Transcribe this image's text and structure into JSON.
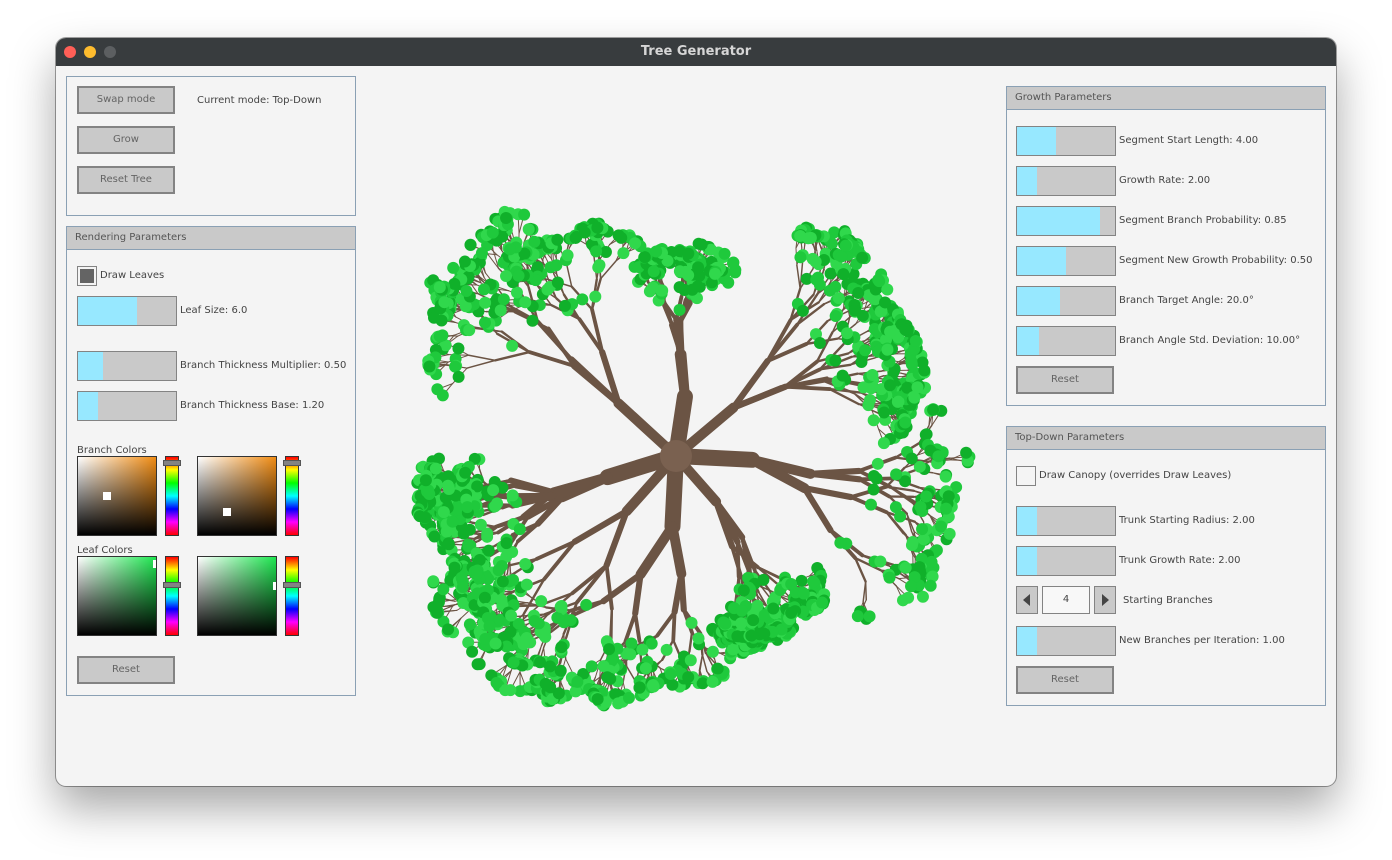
{
  "window": {
    "title": "Tree Generator"
  },
  "mode_panel": {
    "swap_label": "Swap mode",
    "current_mode": "Current mode: Top-Down",
    "grow_label": "Grow",
    "reset_tree_label": "Reset Tree"
  },
  "rendering": {
    "title": "Rendering Parameters",
    "draw_leaves_label": "Draw Leaves",
    "draw_leaves_checked": true,
    "leaf_size": {
      "label": "Leaf Size: 6.0",
      "fill": 0.6
    },
    "branch_mult": {
      "label": "Branch Thickness Multiplier: 0.50",
      "fill": 0.25
    },
    "branch_base": {
      "label": "Branch Thickness Base: 1.20",
      "fill": 0.2
    },
    "branch_colors_label": "Branch Colors",
    "leaf_colors_label": "Leaf Colors",
    "reset_label": "Reset",
    "colors": {
      "branch1": "#f08c14",
      "branch2": "#f08c14",
      "leaf1": "#1ee650",
      "leaf2": "#1ee650"
    }
  },
  "growth": {
    "title": "Growth Parameters",
    "sliders": [
      {
        "label": "Segment Start Length: 4.00",
        "fill": 0.4
      },
      {
        "label": "Growth Rate: 2.00",
        "fill": 0.2
      },
      {
        "label": "Segment Branch Probability: 0.85",
        "fill": 0.85
      },
      {
        "label": "Segment New Growth Probability: 0.50",
        "fill": 0.5
      },
      {
        "label": "Branch Target Angle: 20.0°",
        "fill": 0.44
      },
      {
        "label": "Branch Angle Std. Deviation: 10.00°",
        "fill": 0.22
      }
    ],
    "reset_label": "Reset"
  },
  "topdown": {
    "title": "Top-Down Parameters",
    "canopy_label": "Draw Canopy (overrides Draw Leaves)",
    "canopy_checked": false,
    "trunk_radius": {
      "label": "Trunk Starting Radius: 2.00",
      "fill": 0.2
    },
    "trunk_growth": {
      "label": "Trunk Growth Rate: 2.00",
      "fill": 0.2
    },
    "starting_branches_value": "4",
    "starting_branches_label": "Starting Branches",
    "new_branches": {
      "label": "New Branches per Iteration: 1.00",
      "fill": 0.2
    },
    "reset_label": "Reset"
  },
  "tree_colors": {
    "branch": "#6b5444",
    "leaf_a": "#1fc93c",
    "leaf_b": "#10b02a",
    "leaf_c": "#30d84c"
  }
}
